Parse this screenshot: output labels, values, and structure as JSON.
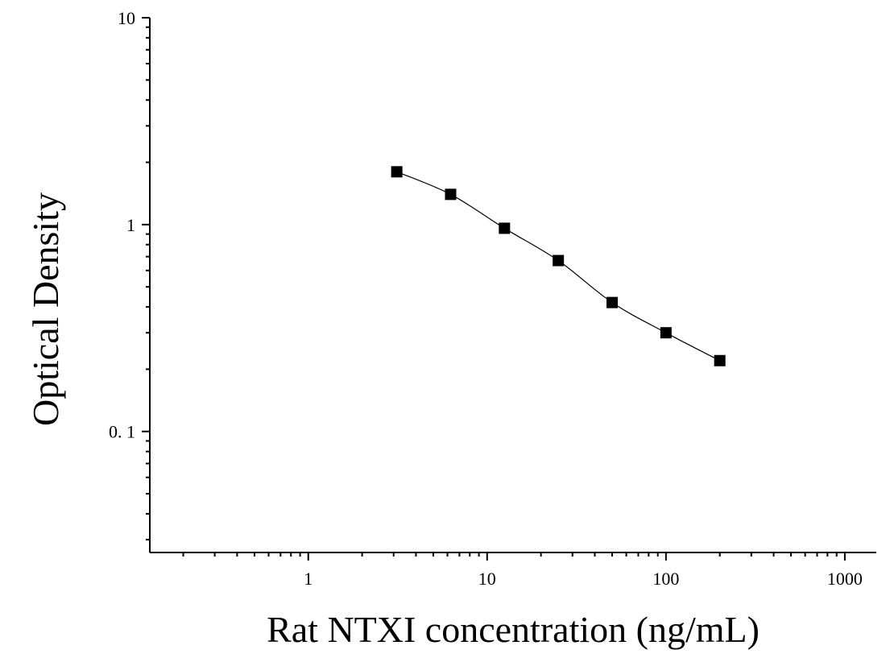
{
  "chart_data": {
    "type": "scatter",
    "title": "",
    "xlabel": "Rat NTXI concentration (ng/mL)",
    "ylabel": "Optical Density",
    "x_scale": "log",
    "y_scale": "log",
    "xlim": [
      0.13,
      1500
    ],
    "ylim": [
      0.026,
      10
    ],
    "x_tick_labels": [
      "1",
      "10",
      "100",
      "1000"
    ],
    "y_tick_labels": [
      "10",
      "1",
      "0. 1"
    ],
    "x_tick_values": [
      1,
      10,
      100,
      1000
    ],
    "y_tick_values": [
      10,
      1,
      0.1
    ],
    "grid": false,
    "legend": "none",
    "series": [
      {
        "marker": "square",
        "color": "#000000",
        "x": [
          3.125,
          6.25,
          12.5,
          25,
          50,
          100,
          200
        ],
        "y": [
          1.8,
          1.4,
          0.96,
          0.67,
          0.42,
          0.3,
          0.22
        ]
      }
    ],
    "fit_curve": {
      "style": "smooth line",
      "color": "#000000"
    }
  }
}
